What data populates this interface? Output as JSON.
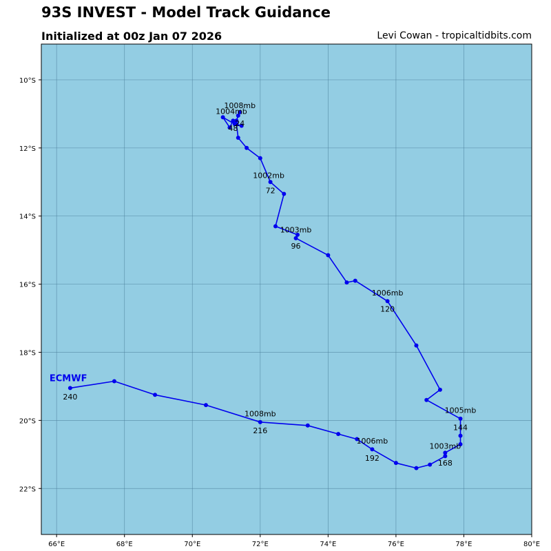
{
  "header": {
    "title": "93S INVEST - Model Track Guidance",
    "subtitle": "Initialized at 00z Jan 07 2026",
    "credit": "Levi Cowan - tropicaltidbits.com"
  },
  "colors": {
    "ocean": "#93cde3",
    "grid": "#4a7f9a",
    "track": "#0000ee"
  },
  "chart_data": {
    "type": "map-track",
    "model": "ECMWF",
    "lon_range": [
      65.55,
      80.0
    ],
    "lat_range": [
      -23.35,
      -8.95
    ],
    "lon_ticks": [
      {
        "value": 66,
        "label": "66°E"
      },
      {
        "value": 68,
        "label": "68°E"
      },
      {
        "value": 70,
        "label": "70°E"
      },
      {
        "value": 72,
        "label": "72°E"
      },
      {
        "value": 74,
        "label": "74°E"
      },
      {
        "value": 76,
        "label": "76°E"
      },
      {
        "value": 78,
        "label": "78°E"
      },
      {
        "value": 80,
        "label": "80°E"
      }
    ],
    "lat_ticks": [
      {
        "value": -10,
        "label": "10°S"
      },
      {
        "value": -12,
        "label": "12°S"
      },
      {
        "value": -14,
        "label": "14°S"
      },
      {
        "value": -16,
        "label": "16°S"
      },
      {
        "value": -18,
        "label": "18°S"
      },
      {
        "value": -20,
        "label": "20°S"
      },
      {
        "value": -22,
        "label": "22°S"
      }
    ],
    "track": [
      [
        71.4,
        -10.95
      ],
      [
        71.35,
        -11.05
      ],
      [
        71.3,
        -11.2
      ],
      [
        71.2,
        -11.2
      ],
      [
        71.1,
        -11.4
      ],
      [
        70.9,
        -11.1
      ],
      [
        71.25,
        -11.3
      ],
      [
        71.45,
        -11.35
      ],
      [
        71.3,
        -11.3
      ],
      [
        71.35,
        -11.7
      ],
      [
        71.6,
        -12.0
      ],
      [
        72.0,
        -12.3
      ],
      [
        72.3,
        -13.0
      ],
      [
        72.7,
        -13.35
      ],
      [
        72.45,
        -14.3
      ],
      [
        73.1,
        -14.55
      ],
      [
        73.05,
        -14.65
      ],
      [
        74.0,
        -15.15
      ],
      [
        74.55,
        -15.95
      ],
      [
        74.8,
        -15.9
      ],
      [
        75.75,
        -16.5
      ],
      [
        76.6,
        -17.8
      ],
      [
        77.3,
        -19.1
      ],
      [
        76.9,
        -19.4
      ],
      [
        77.9,
        -19.95
      ],
      [
        77.9,
        -20.45
      ],
      [
        77.9,
        -20.7
      ],
      [
        77.45,
        -20.95
      ],
      [
        77.45,
        -21.05
      ],
      [
        77.0,
        -21.3
      ],
      [
        76.6,
        -21.4
      ],
      [
        76.0,
        -21.25
      ],
      [
        75.3,
        -20.85
      ],
      [
        74.85,
        -20.55
      ],
      [
        74.3,
        -20.4
      ],
      [
        73.4,
        -20.15
      ],
      [
        72.0,
        -20.05
      ],
      [
        70.4,
        -19.55
      ],
      [
        68.9,
        -19.25
      ],
      [
        67.7,
        -18.85
      ],
      [
        66.4,
        -19.05
      ]
    ],
    "annotations": [
      {
        "lon": 71.4,
        "lat": -10.75,
        "text": "1008mb"
      },
      {
        "lon": 71.15,
        "lat": -10.92,
        "text": "1004mb"
      },
      {
        "lon": 71.4,
        "lat": -11.28,
        "text": "24"
      },
      {
        "lon": 71.2,
        "lat": -11.42,
        "text": "48"
      },
      {
        "lon": 72.25,
        "lat": -12.8,
        "text": "1002mb"
      },
      {
        "lon": 72.3,
        "lat": -13.25,
        "text": "72"
      },
      {
        "lon": 73.05,
        "lat": -14.4,
        "text": "1003mb"
      },
      {
        "lon": 73.05,
        "lat": -14.88,
        "text": "96"
      },
      {
        "lon": 75.75,
        "lat": -16.25,
        "text": "1006mb"
      },
      {
        "lon": 75.75,
        "lat": -16.73,
        "text": "120"
      },
      {
        "lon": 77.9,
        "lat": -19.7,
        "text": "1005mb"
      },
      {
        "lon": 77.9,
        "lat": -20.2,
        "text": "144"
      },
      {
        "lon": 77.45,
        "lat": -20.75,
        "text": "1003mb"
      },
      {
        "lon": 77.45,
        "lat": -21.25,
        "text": "168"
      },
      {
        "lon": 75.3,
        "lat": -20.6,
        "text": "1006mb"
      },
      {
        "lon": 75.3,
        "lat": -21.1,
        "text": "192"
      },
      {
        "lon": 72.0,
        "lat": -19.8,
        "text": "1008mb"
      },
      {
        "lon": 72.0,
        "lat": -20.3,
        "text": "216"
      },
      {
        "lon": 66.4,
        "lat": -19.3,
        "text": "240"
      }
    ]
  }
}
